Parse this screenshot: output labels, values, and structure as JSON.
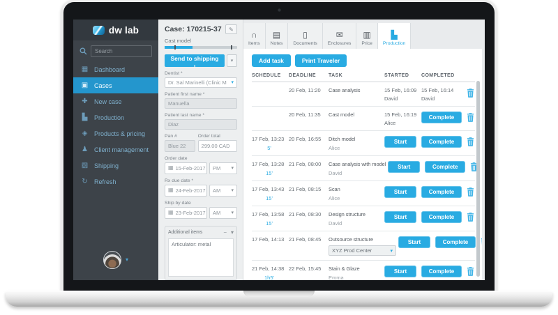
{
  "colors": {
    "accent": "#29abe2",
    "sidebar_active": "#2496cd",
    "sidebar_bg": "#3d4349",
    "panel_bg": "#edeff0"
  },
  "sidebar": {
    "logo_text": "dw lab",
    "search_placeholder": "Search",
    "items": [
      {
        "label": "Dashboard",
        "icon": "dashboard-icon",
        "active": false
      },
      {
        "label": "Cases",
        "icon": "cases-icon",
        "active": true
      },
      {
        "label": "New case",
        "icon": "new-case-icon",
        "active": false
      },
      {
        "label": "Production",
        "icon": "production-icon",
        "active": false
      },
      {
        "label": "Products & pricing",
        "icon": "products-pricing-icon",
        "active": false
      },
      {
        "label": "Client management",
        "icon": "client-management-icon",
        "active": false
      },
      {
        "label": "Shipping",
        "icon": "shipping-icon",
        "active": false
      },
      {
        "label": "Refresh",
        "icon": "refresh-icon",
        "active": false
      }
    ]
  },
  "case_panel": {
    "title": "Case: 170215-37",
    "case_type": "Cast model",
    "progress_percent": 38,
    "progress_markers": [
      13,
      91
    ],
    "send_to_shipping": "Send to shipping  ›",
    "dentist": {
      "label": "Dentist *",
      "value": "Dr. Sal Marinelli (Clinic M"
    },
    "patient_first": {
      "label": "Patient first name *",
      "value": "Manuella"
    },
    "patient_last": {
      "label": "Patient last name *",
      "value": "Diaz"
    },
    "pan": {
      "label": "Pan #",
      "value": "Blue 22"
    },
    "order_total": {
      "label": "Order total",
      "value": "299.00 CAD"
    },
    "order_date": {
      "label": "Order date",
      "value": "15-Feb-2017",
      "meridiem": "PM"
    },
    "rx_due_date": {
      "label": "Rx due date *",
      "value": "24-Feb-2017",
      "meridiem": "AM"
    },
    "ship_by_date": {
      "label": "Ship by date",
      "value": "23-Feb-2017",
      "meridiem": "AM"
    },
    "additional_items": {
      "label": "Additional items",
      "value": "Articulator: metal"
    }
  },
  "tabs": [
    {
      "label": "Items",
      "icon": "items-icon",
      "active": false
    },
    {
      "label": "Notes",
      "icon": "notes-icon",
      "active": false
    },
    {
      "label": "Documents",
      "icon": "documents-icon",
      "active": false
    },
    {
      "label": "Enclosures",
      "icon": "enclosures-icon",
      "active": false
    },
    {
      "label": "Price",
      "icon": "price-icon",
      "active": false
    },
    {
      "label": "Production",
      "icon": "production-tab-icon",
      "active": true
    }
  ],
  "toolbar": {
    "add_task": "Add task",
    "print_traveler": "Print Traveler"
  },
  "production_table": {
    "headers": [
      "SCHEDULE",
      "DEADLINE",
      "TASK",
      "STARTED",
      "COMPLETED"
    ],
    "start_label": "Start",
    "complete_label": "Complete",
    "rows": [
      {
        "schedule": "",
        "duration": "",
        "deadline": "20 Feb, 11:20",
        "task": "Case analysis",
        "assignee": "",
        "started": "15 Feb, 16:09",
        "started_by": "David",
        "completed": "15 Feb, 16:14",
        "completed_by": "David",
        "start_button": false,
        "complete_button": false
      },
      {
        "schedule": "",
        "duration": "",
        "deadline": "20 Feb, 11:35",
        "task": "Cast model",
        "assignee": "",
        "started": "15 Feb, 16:19",
        "started_by": "Alice",
        "completed": "",
        "completed_by": "",
        "start_button": false,
        "complete_button": true
      },
      {
        "schedule": "17 Feb, 13:23",
        "duration": "5'",
        "deadline": "20 Feb, 16:55",
        "task": "Ditch model",
        "assignee": "Alice",
        "started": "",
        "started_by": "",
        "completed": "",
        "completed_by": "",
        "start_button": true,
        "complete_button": true
      },
      {
        "schedule": "17 Feb, 13:28",
        "duration": "15'",
        "deadline": "21 Feb, 08:00",
        "task": "Case analysis with model",
        "assignee": "David",
        "started": "",
        "started_by": "",
        "completed": "",
        "completed_by": "",
        "start_button": true,
        "complete_button": true
      },
      {
        "schedule": "17 Feb, 13:43",
        "duration": "15'",
        "deadline": "21 Feb, 08:15",
        "task": "Scan",
        "assignee": "Alice",
        "started": "",
        "started_by": "",
        "completed": "",
        "completed_by": "",
        "start_button": true,
        "complete_button": true
      },
      {
        "schedule": "17 Feb, 13:58",
        "duration": "15'",
        "deadline": "21 Feb, 08:30",
        "task": "Design structure",
        "assignee": "David",
        "started": "",
        "started_by": "",
        "completed": "",
        "completed_by": "",
        "start_button": true,
        "complete_button": true
      },
      {
        "schedule": "17 Feb, 14:13",
        "duration": "",
        "deadline": "21 Feb, 08:45",
        "task": "Outsource structure",
        "assignee": "",
        "assignee_select": "XYZ Prod Center",
        "started": "",
        "started_by": "",
        "completed": "",
        "completed_by": "",
        "start_button": true,
        "complete_button": true
      },
      {
        "schedule": "21 Feb, 14:38",
        "duration": "1h5'",
        "deadline": "22 Feb, 15:45",
        "task": "Stain & Glaze",
        "assignee": "Emma",
        "started": "",
        "started_by": "",
        "completed": "",
        "completed_by": "",
        "start_button": true,
        "complete_button": true
      }
    ]
  }
}
